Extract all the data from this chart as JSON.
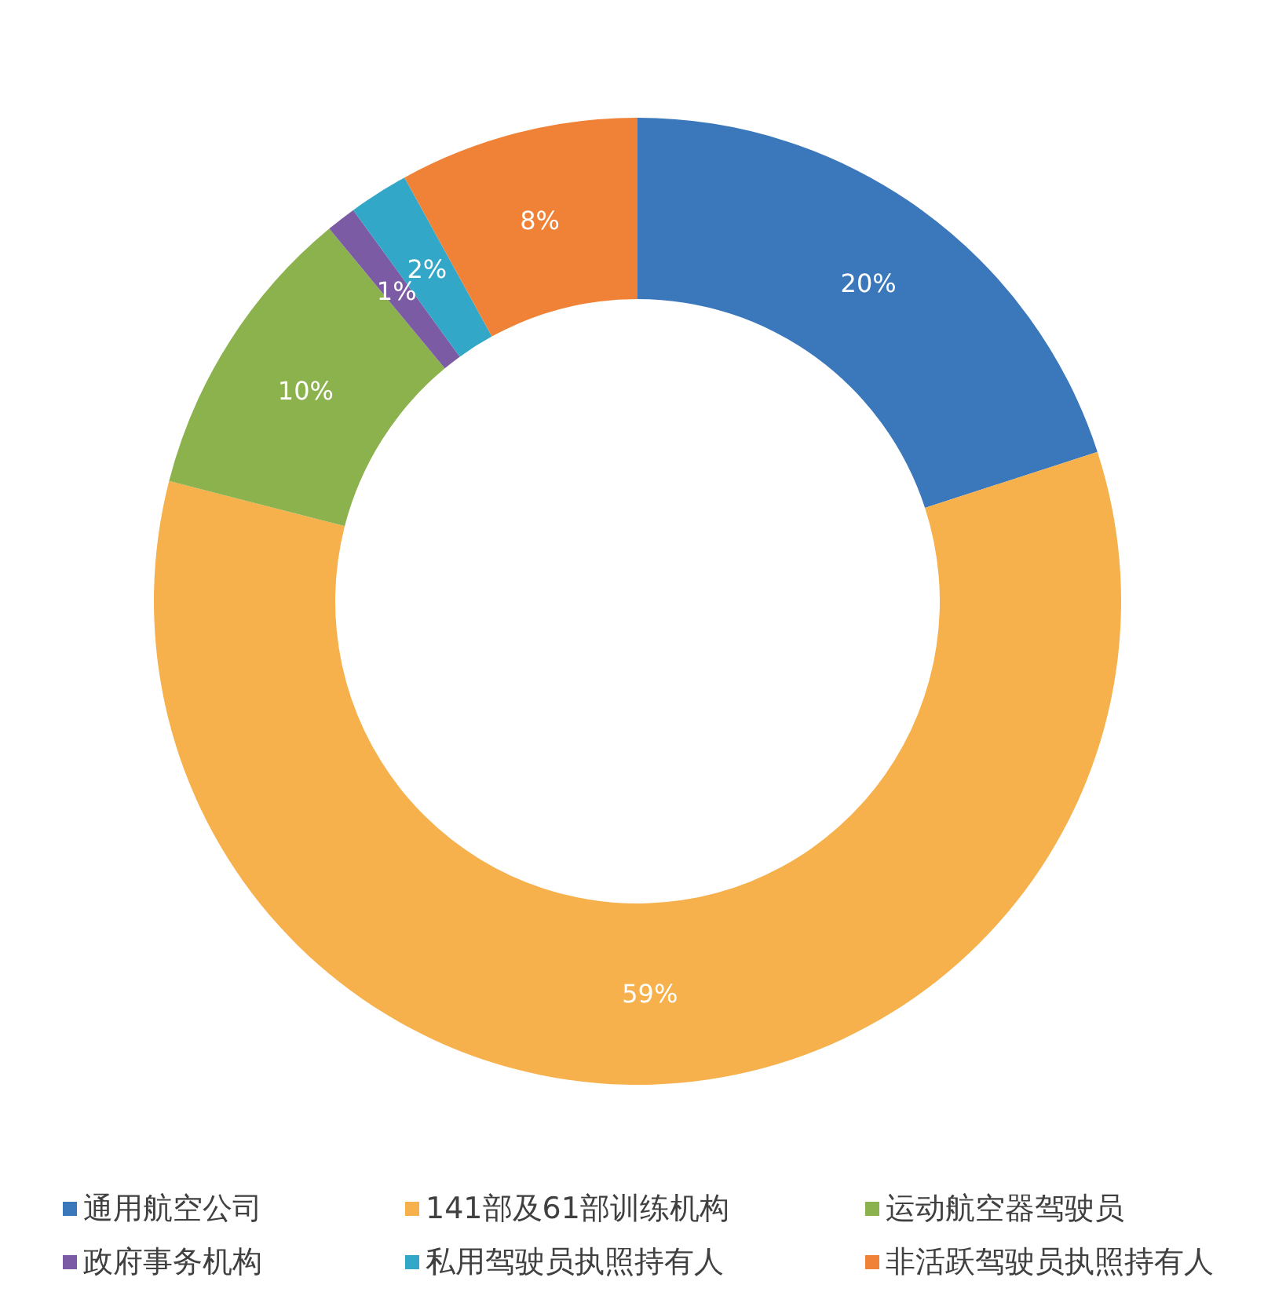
{
  "chart_data": {
    "type": "donut",
    "categories": [
      "通用航空公司",
      "141部及61部训练机构",
      "运动航空器驾驶员",
      "政府事务机构",
      "私用驾驶员执照持有人",
      "非活跃驾驶员执照持有人"
    ],
    "values": [
      20,
      59,
      10,
      1,
      2,
      8
    ],
    "colors": [
      "#3a78bb",
      "#f6b04c",
      "#8cb24d",
      "#7b5ba3",
      "#33a7c7",
      "#ef8236"
    ],
    "value_labels": [
      "20%",
      "59%",
      "10%",
      "1%",
      "2%",
      "8%"
    ],
    "legend": "bottom"
  }
}
